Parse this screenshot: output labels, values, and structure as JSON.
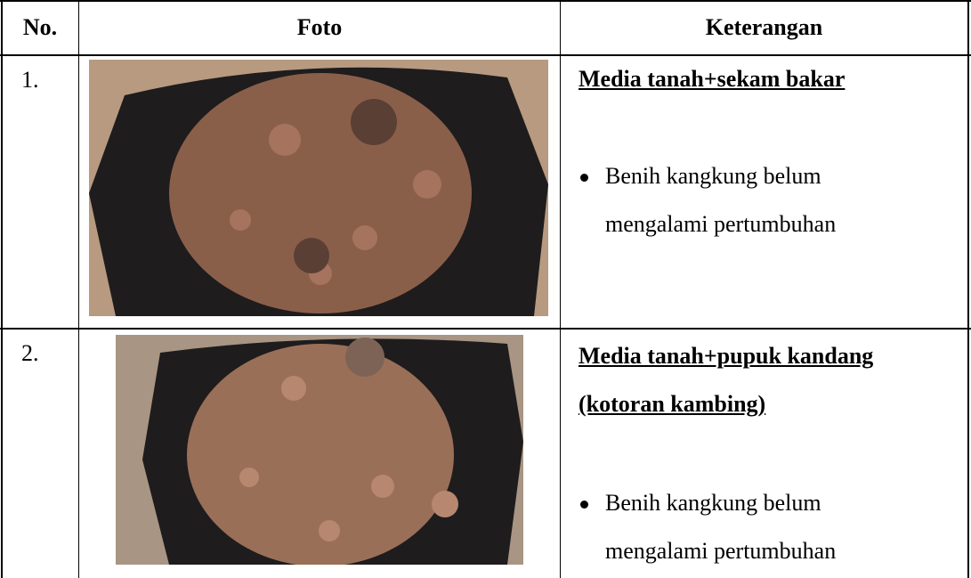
{
  "table": {
    "columns": [
      "No.",
      "Foto",
      "Keterangan"
    ],
    "rows": [
      {
        "number": "1.",
        "title": "Media tanah+sekam bakar",
        "bullets": [
          "Benih kangkung belum mengalami pertumbuhan"
        ]
      },
      {
        "number": "2.",
        "title": "Media tanah+pupuk kandang (kotoran kambing)",
        "bullets": [
          "Benih kangkung belum mengalami pertumbuhan"
        ]
      }
    ]
  }
}
